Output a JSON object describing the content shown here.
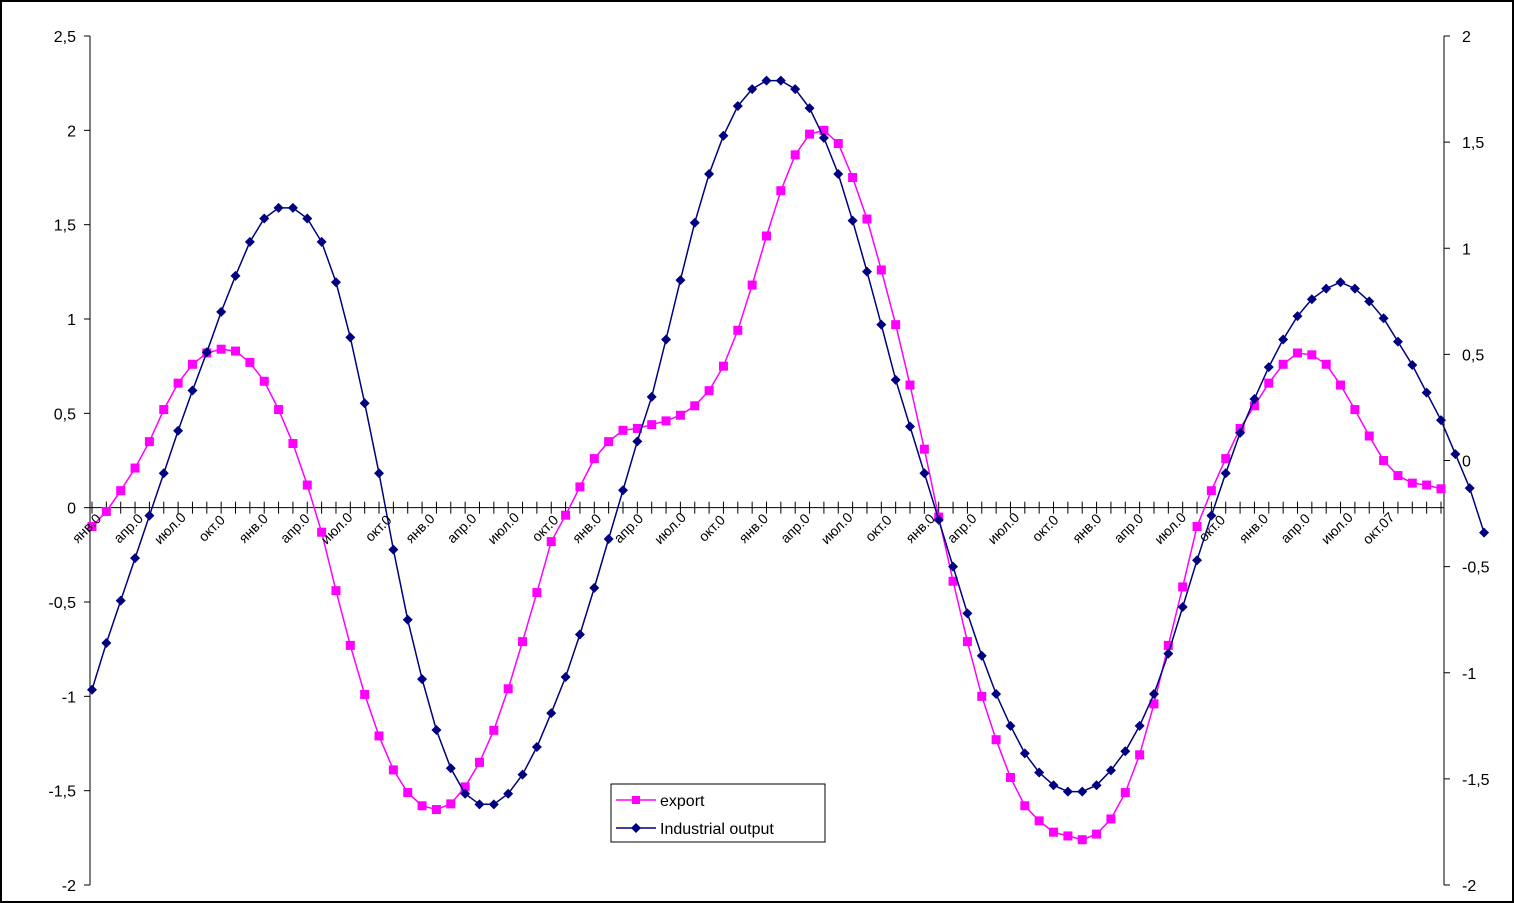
{
  "chart_data": {
    "type": "line",
    "title": "",
    "xlabel": "",
    "ylabel": "",
    "y2label": "",
    "ylim": [
      -2,
      2.5
    ],
    "y2lim": [
      -2,
      2
    ],
    "yticks": [
      "2,5",
      "2",
      "1,5",
      "1",
      "0,5",
      "0",
      "-0,5",
      "-1",
      "-1,5",
      "-2"
    ],
    "y2ticks": [
      "2",
      "1,5",
      "1",
      "0,5",
      "0",
      "-0,5",
      "-1",
      "-1,5",
      "-2"
    ],
    "x_tick_labels": [
      "янв.0",
      "апр.0",
      "июл.0",
      "окт.0",
      "янв.0",
      "апр.0",
      "июл.0",
      "окт.0",
      "янв.0",
      "апр.0",
      "июл.0",
      "окт.0",
      "янв.0",
      "апр.0",
      "июл.0",
      "окт.0",
      "янв.0",
      "апр.0",
      "июл.0",
      "окт.0",
      "янв.0",
      "апр.0",
      "июл.0",
      "окт.0",
      "янв.0",
      "апр.0",
      "июл.0",
      "окт.0",
      "янв.0",
      "апр.0",
      "июл.0",
      "окт.07"
    ],
    "legend_position": "bottom-center",
    "grid": false,
    "series": [
      {
        "name": "export",
        "axis": "left",
        "color": "#ff00ff",
        "marker": "square",
        "values": [
          -0.1,
          -0.02,
          0.09,
          0.21,
          0.35,
          0.52,
          0.66,
          0.76,
          0.82,
          0.84,
          0.83,
          0.77,
          0.67,
          0.52,
          0.34,
          0.12,
          -0.13,
          -0.44,
          -0.73,
          -0.99,
          -1.21,
          -1.39,
          -1.51,
          -1.58,
          -1.6,
          -1.57,
          -1.48,
          -1.35,
          -1.18,
          -0.96,
          -0.71,
          -0.45,
          -0.18,
          -0.04,
          0.11,
          0.26,
          0.35,
          0.41,
          0.42,
          0.44,
          0.46,
          0.49,
          0.54,
          0.62,
          0.75,
          0.94,
          1.18,
          1.44,
          1.68,
          1.87,
          1.98,
          2.0,
          1.93,
          1.75,
          1.53,
          1.26,
          0.97,
          0.65,
          0.31,
          -0.05,
          -0.39,
          -0.71,
          -1.0,
          -1.23,
          -1.43,
          -1.58,
          -1.66,
          -1.72,
          -1.74,
          -1.76,
          -1.73,
          -1.65,
          -1.51,
          -1.31,
          -1.04,
          -0.73,
          -0.42,
          -0.1,
          0.09,
          0.26,
          0.42,
          0.54,
          0.66,
          0.76,
          0.82,
          0.81,
          0.76,
          0.65,
          0.52,
          0.38,
          0.25,
          0.17,
          0.13,
          0.12,
          0.1
        ]
      },
      {
        "name": "Industrial output",
        "axis": "right",
        "color": "#000080",
        "marker": "diamond",
        "values": [
          -1.08,
          -0.86,
          -0.66,
          -0.46,
          -0.26,
          -0.06,
          0.14,
          0.33,
          0.51,
          0.7,
          0.87,
          1.03,
          1.14,
          1.19,
          1.19,
          1.14,
          1.03,
          0.84,
          0.58,
          0.27,
          -0.06,
          -0.42,
          -0.75,
          -1.03,
          -1.27,
          -1.45,
          -1.57,
          -1.62,
          -1.62,
          -1.57,
          -1.48,
          -1.35,
          -1.19,
          -1.02,
          -0.82,
          -0.6,
          -0.37,
          -0.14,
          0.09,
          0.3,
          0.57,
          0.85,
          1.12,
          1.35,
          1.53,
          1.67,
          1.75,
          1.79,
          1.79,
          1.75,
          1.66,
          1.52,
          1.35,
          1.13,
          0.89,
          0.64,
          0.38,
          0.16,
          -0.06,
          -0.28,
          -0.5,
          -0.72,
          -0.92,
          -1.1,
          -1.25,
          -1.38,
          -1.47,
          -1.53,
          -1.56,
          -1.56,
          -1.53,
          -1.46,
          -1.37,
          -1.25,
          -1.1,
          -0.91,
          -0.69,
          -0.47,
          -0.26,
          -0.06,
          0.13,
          0.29,
          0.44,
          0.57,
          0.68,
          0.76,
          0.81,
          0.84,
          0.81,
          0.75,
          0.67,
          0.56,
          0.45,
          0.32,
          0.19,
          0.03,
          -0.13,
          -0.34
        ]
      }
    ]
  }
}
